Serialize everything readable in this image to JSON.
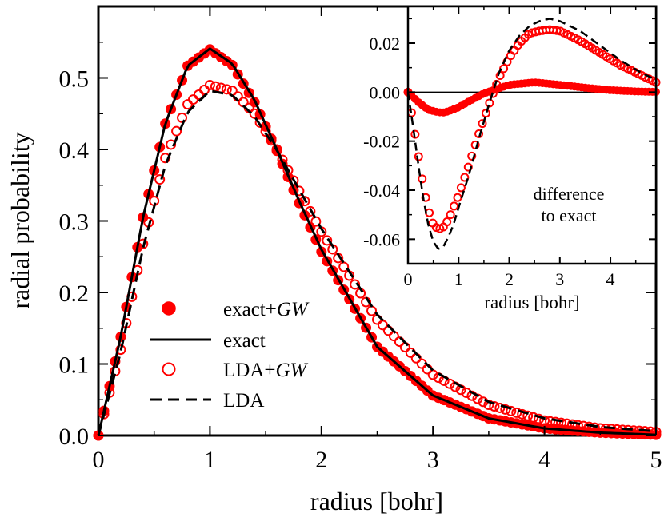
{
  "chart_data": [
    {
      "type": "line",
      "role": "main",
      "xlabel": "radius [bohr]",
      "ylabel": "radial probability",
      "xlim": [
        0,
        5
      ],
      "ylim": [
        0,
        0.6
      ],
      "xticks": [
        "0",
        "1",
        "2",
        "3",
        "4",
        "5"
      ],
      "yticks": [
        "0.0",
        "0.1",
        "0.2",
        "0.3",
        "0.4",
        "0.5"
      ],
      "xtick_values": [
        0,
        1,
        2,
        3,
        4,
        5
      ],
      "ytick_values": [
        0,
        0.1,
        0.2,
        0.3,
        0.4,
        0.5
      ],
      "legend": [
        {
          "label_main": "exact+",
          "label_italic": "GW",
          "marker": "filled-circle"
        },
        {
          "label_main": "exact",
          "label_italic": "",
          "marker": "solid-line"
        },
        {
          "label_main": "LDA+",
          "label_italic": "GW",
          "marker": "open-circle"
        },
        {
          "label_main": "LDA",
          "label_italic": "",
          "marker": "dashed-line"
        }
      ],
      "series": [
        {
          "name": "exact+GW",
          "style": "filled-circle",
          "color": "#ff0000",
          "x": [
            0.0,
            0.2,
            0.4,
            0.6,
            0.8,
            1.0,
            1.2,
            1.4,
            1.6,
            1.8,
            2.0,
            2.5,
            3.0,
            3.5,
            4.0,
            4.5,
            5.0
          ],
          "y": [
            0.0,
            0.138,
            0.305,
            0.436,
            0.517,
            0.54,
            0.518,
            0.466,
            0.398,
            0.325,
            0.257,
            0.124,
            0.056,
            0.024,
            0.01,
            0.004,
            0.001
          ]
        },
        {
          "name": "exact",
          "style": "solid",
          "color": "#000000",
          "x": [
            0.0,
            0.2,
            0.4,
            0.6,
            0.8,
            1.0,
            1.2,
            1.4,
            1.6,
            1.8,
            2.0,
            2.5,
            3.0,
            3.5,
            4.0,
            4.5,
            5.0
          ],
          "y": [
            0.0,
            0.138,
            0.305,
            0.436,
            0.517,
            0.541,
            0.52,
            0.469,
            0.4,
            0.328,
            0.26,
            0.124,
            0.056,
            0.024,
            0.01,
            0.004,
            0.001
          ]
        },
        {
          "name": "LDA+GW",
          "style": "open-circle",
          "color": "#ff0000",
          "x": [
            0.0,
            0.2,
            0.4,
            0.6,
            0.8,
            1.0,
            1.2,
            1.4,
            1.6,
            1.8,
            2.0,
            2.5,
            3.0,
            3.5,
            4.0,
            4.5,
            5.0
          ],
          "y": [
            0.0,
            0.12,
            0.268,
            0.388,
            0.463,
            0.49,
            0.482,
            0.45,
            0.4,
            0.342,
            0.285,
            0.162,
            0.085,
            0.043,
            0.021,
            0.01,
            0.005
          ]
        },
        {
          "name": "LDA",
          "style": "dashed",
          "color": "#000000",
          "x": [
            0.0,
            0.2,
            0.4,
            0.6,
            0.8,
            1.0,
            1.2,
            1.4,
            1.6,
            1.8,
            2.0,
            2.5,
            3.0,
            3.5,
            4.0,
            4.5,
            5.0
          ],
          "y": [
            0.0,
            0.117,
            0.262,
            0.378,
            0.452,
            0.482,
            0.476,
            0.446,
            0.399,
            0.344,
            0.289,
            0.169,
            0.091,
            0.047,
            0.024,
            0.012,
            0.006
          ]
        }
      ]
    },
    {
      "type": "line",
      "role": "inset",
      "xlabel": "radius [bohr]",
      "ylabel": "",
      "annotation": [
        "difference",
        "to exact"
      ],
      "xlim": [
        0,
        4.9
      ],
      "ylim": [
        -0.07,
        0.035
      ],
      "xticks": [
        "0",
        "1",
        "2",
        "3",
        "4"
      ],
      "yticks": [
        "0.02",
        "0.00",
        "-0.02",
        "-0.04",
        "-0.06"
      ],
      "xtick_values": [
        0,
        1,
        2,
        3,
        4
      ],
      "ytick_values": [
        0.02,
        0.0,
        -0.02,
        -0.04,
        -0.06
      ],
      "series": [
        {
          "name": "exact+GW",
          "style": "filled-circle",
          "color": "#ff0000",
          "x": [
            0.0,
            0.2,
            0.4,
            0.6,
            0.7,
            0.8,
            1.0,
            1.2,
            1.5,
            2.0,
            2.5,
            3.0,
            3.5,
            4.0,
            4.5,
            4.9
          ],
          "y": [
            0.0,
            -0.004,
            -0.0072,
            -0.0082,
            -0.0083,
            -0.0078,
            -0.0062,
            -0.0038,
            -0.0005,
            0.003,
            0.004,
            0.003,
            0.0018,
            0.0008,
            0.0003,
            0.0001
          ]
        },
        {
          "name": "LDA+GW",
          "style": "open-circle",
          "color": "#ff0000",
          "x": [
            0.0,
            0.1,
            0.2,
            0.3,
            0.4,
            0.5,
            0.6,
            0.7,
            0.8,
            0.9,
            1.0,
            1.2,
            1.4,
            1.6,
            1.8,
            2.0,
            2.2,
            2.4,
            2.6,
            2.8,
            3.0,
            3.4,
            3.8,
            4.2,
            4.6,
            4.9
          ],
          "y": [
            0.0,
            -0.012,
            -0.025,
            -0.038,
            -0.048,
            -0.054,
            -0.056,
            -0.055,
            -0.052,
            -0.047,
            -0.042,
            -0.03,
            -0.017,
            -0.005,
            0.006,
            0.014,
            0.02,
            0.024,
            0.025,
            0.0255,
            0.025,
            0.021,
            0.016,
            0.011,
            0.007,
            0.004
          ]
        },
        {
          "name": "LDA",
          "style": "dashed",
          "color": "#000000",
          "x": [
            0.0,
            0.1,
            0.2,
            0.3,
            0.4,
            0.5,
            0.6,
            0.7,
            0.8,
            0.9,
            1.0,
            1.2,
            1.4,
            1.6,
            1.8,
            2.0,
            2.2,
            2.4,
            2.6,
            2.8,
            3.0,
            3.4,
            3.8,
            4.2,
            4.6,
            4.9
          ],
          "y": [
            0.0,
            -0.014,
            -0.029,
            -0.043,
            -0.054,
            -0.061,
            -0.064,
            -0.063,
            -0.059,
            -0.054,
            -0.047,
            -0.034,
            -0.019,
            -0.005,
            0.008,
            0.017,
            0.023,
            0.027,
            0.029,
            0.03,
            0.029,
            0.025,
            0.019,
            0.013,
            0.008,
            0.005
          ]
        },
        {
          "name": "zero-line",
          "style": "solid-thin",
          "color": "#000000",
          "x": [
            0,
            4.9
          ],
          "y": [
            0,
            0
          ]
        }
      ]
    }
  ]
}
